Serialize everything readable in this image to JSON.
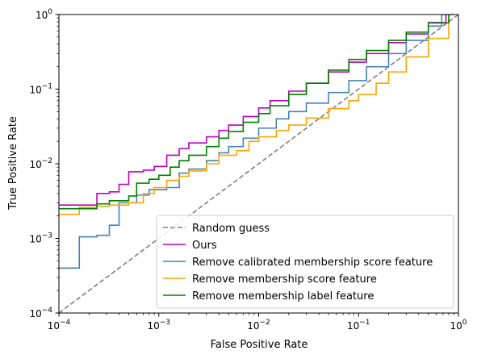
{
  "chart_data": {
    "type": "line",
    "xlabel": "False Positive Rate",
    "ylabel": "True Positive Rate",
    "xscale": "log",
    "yscale": "log",
    "xlim": [
      0.0001,
      1
    ],
    "ylim": [
      0.0001,
      1
    ],
    "grid": false,
    "legend_position": "lower-right",
    "x_ticks": [
      {
        "value": 0.0001,
        "base": "10",
        "exp": "−4"
      },
      {
        "value": 0.001,
        "base": "10",
        "exp": "−3"
      },
      {
        "value": 0.01,
        "base": "10",
        "exp": "−2"
      },
      {
        "value": 0.1,
        "base": "10",
        "exp": "−1"
      },
      {
        "value": 1,
        "base": "10",
        "exp": "0"
      }
    ],
    "y_ticks": [
      {
        "value": 0.0001,
        "base": "10",
        "exp": "−4"
      },
      {
        "value": 0.001,
        "base": "10",
        "exp": "−3"
      },
      {
        "value": 0.01,
        "base": "10",
        "exp": "−2"
      },
      {
        "value": 0.1,
        "base": "10",
        "exp": "−1"
      },
      {
        "value": 1,
        "base": "10",
        "exp": "0"
      }
    ],
    "series": [
      {
        "name": "Random guess",
        "color": "#808080",
        "dash": "dashed",
        "x": [
          0.0001,
          1
        ],
        "y": [
          0.0001,
          1
        ]
      },
      {
        "name": "Ours",
        "color": "#bf00bf",
        "dash": "solid",
        "x": [
          0.0001,
          0.00016,
          0.00024,
          0.00032,
          0.0004,
          0.0005,
          0.0007,
          0.0009,
          0.0012,
          0.0016,
          0.002,
          0.003,
          0.004,
          0.005,
          0.007,
          0.01,
          0.013,
          0.02,
          0.03,
          0.05,
          0.08,
          0.12,
          0.2,
          0.3,
          0.5,
          0.75
        ],
        "y": [
          0.0028,
          0.0028,
          0.004,
          0.0042,
          0.0053,
          0.0078,
          0.0082,
          0.0092,
          0.013,
          0.016,
          0.019,
          0.023,
          0.028,
          0.033,
          0.043,
          0.056,
          0.07,
          0.094,
          0.12,
          0.17,
          0.23,
          0.3,
          0.42,
          0.55,
          0.78,
          1.0
        ]
      },
      {
        "name": "Remove calibrated membership score feature",
        "color": "#4682b4",
        "dash": "solid",
        "x": [
          0.0001,
          0.00016,
          0.00024,
          0.00032,
          0.0004,
          0.0006,
          0.0008,
          0.0012,
          0.0016,
          0.002,
          0.003,
          0.004,
          0.005,
          0.007,
          0.01,
          0.015,
          0.02,
          0.03,
          0.05,
          0.08,
          0.12,
          0.2,
          0.3,
          0.5,
          0.68
        ],
        "y": [
          0.0004,
          0.00105,
          0.0011,
          0.0015,
          0.003,
          0.0038,
          0.0045,
          0.0048,
          0.0075,
          0.0085,
          0.011,
          0.014,
          0.017,
          0.022,
          0.03,
          0.04,
          0.05,
          0.065,
          0.09,
          0.13,
          0.2,
          0.3,
          0.45,
          0.7,
          1.0
        ]
      },
      {
        "name": "Remove membership score feature",
        "color": "#ffa500",
        "dash": "solid",
        "x": [
          0.0001,
          0.00016,
          0.00024,
          0.00032,
          0.0005,
          0.0007,
          0.0009,
          0.0012,
          0.0016,
          0.002,
          0.003,
          0.004,
          0.006,
          0.008,
          0.01,
          0.015,
          0.02,
          0.03,
          0.05,
          0.08,
          0.1,
          0.15,
          0.2,
          0.3,
          0.5,
          0.8
        ],
        "y": [
          0.0021,
          0.0026,
          0.0027,
          0.0028,
          0.003,
          0.004,
          0.0048,
          0.006,
          0.0068,
          0.008,
          0.01,
          0.013,
          0.015,
          0.02,
          0.023,
          0.028,
          0.033,
          0.041,
          0.055,
          0.07,
          0.085,
          0.12,
          0.17,
          0.27,
          0.48,
          1.0
        ]
      },
      {
        "name": "Remove membership label feature",
        "color": "#008000",
        "dash": "solid",
        "x": [
          0.0001,
          0.00016,
          0.00024,
          0.00032,
          0.0005,
          0.0006,
          0.0008,
          0.001,
          0.0013,
          0.0016,
          0.002,
          0.003,
          0.004,
          0.005,
          0.007,
          0.01,
          0.013,
          0.02,
          0.03,
          0.05,
          0.08,
          0.12,
          0.2,
          0.3,
          0.5,
          0.8
        ],
        "y": [
          0.0025,
          0.0025,
          0.0029,
          0.0032,
          0.0037,
          0.0055,
          0.0062,
          0.007,
          0.009,
          0.011,
          0.013,
          0.017,
          0.022,
          0.027,
          0.036,
          0.047,
          0.06,
          0.085,
          0.12,
          0.18,
          0.25,
          0.33,
          0.45,
          0.58,
          0.77,
          1.0
        ]
      }
    ]
  }
}
